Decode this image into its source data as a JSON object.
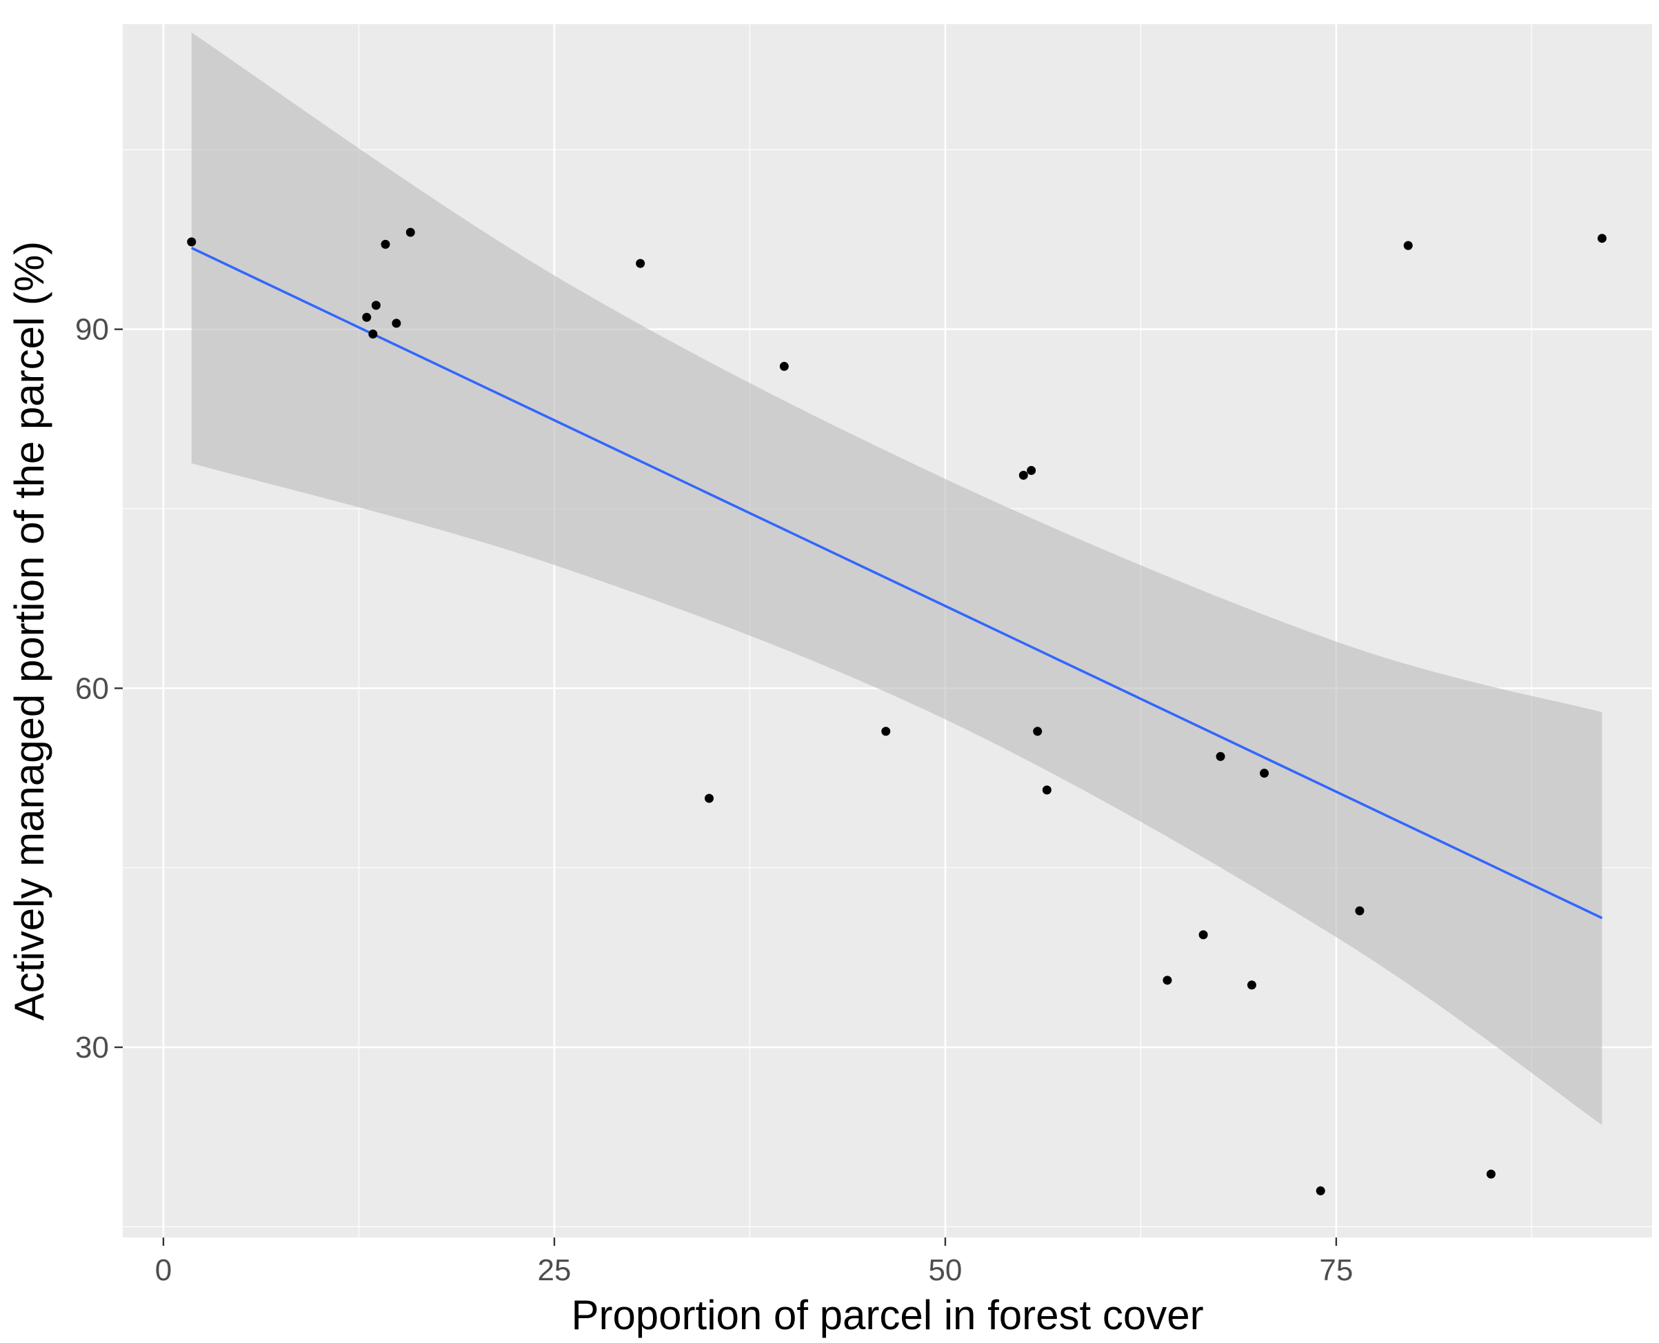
{
  "chart_data": {
    "type": "scatter",
    "title": "",
    "xlabel": "Proportion of parcel in forest cover",
    "ylabel": "Actively managed portion of the parcel (%)",
    "xlim": [
      -2.6,
      95.2
    ],
    "ylim": [
      14.1,
      115.5
    ],
    "xticks": [
      0,
      25,
      50,
      75
    ],
    "xtick_labels": [
      "0",
      "25",
      "50",
      "75"
    ],
    "yticks": [
      30,
      60,
      90
    ],
    "ytick_labels": [
      "30",
      "60",
      "90"
    ],
    "y_minor_gridlines": [
      15,
      45,
      75,
      105
    ],
    "x_minor_gridlines": [
      12.5,
      37.5,
      62.5,
      87.5
    ],
    "grid": true,
    "legend": "none",
    "colors": {
      "panel": "#ebebeb",
      "grid": "#ffffff",
      "points": "#000000",
      "fit_line": "#3366ff",
      "confidence_band": "#bdbdbd"
    },
    "points": [
      {
        "x": 1.8,
        "y": 97.3
      },
      {
        "x": 13.0,
        "y": 91.0
      },
      {
        "x": 13.4,
        "y": 89.6
      },
      {
        "x": 13.6,
        "y": 92.0
      },
      {
        "x": 14.2,
        "y": 97.1
      },
      {
        "x": 14.9,
        "y": 90.5
      },
      {
        "x": 15.8,
        "y": 98.1
      },
      {
        "x": 30.5,
        "y": 95.5
      },
      {
        "x": 34.9,
        "y": 50.8
      },
      {
        "x": 39.7,
        "y": 86.9
      },
      {
        "x": 46.2,
        "y": 56.4
      },
      {
        "x": 55.0,
        "y": 77.8
      },
      {
        "x": 55.5,
        "y": 78.2
      },
      {
        "x": 55.9,
        "y": 56.4
      },
      {
        "x": 56.5,
        "y": 51.5
      },
      {
        "x": 64.2,
        "y": 35.6
      },
      {
        "x": 66.5,
        "y": 39.4
      },
      {
        "x": 67.6,
        "y": 54.3
      },
      {
        "x": 69.6,
        "y": 35.2
      },
      {
        "x": 70.4,
        "y": 52.9
      },
      {
        "x": 74.0,
        "y": 18.0
      },
      {
        "x": 76.5,
        "y": 41.4
      },
      {
        "x": 79.6,
        "y": 97.0
      },
      {
        "x": 84.9,
        "y": 19.4
      },
      {
        "x": 92.0,
        "y": 97.6
      }
    ],
    "fit_line": {
      "x": [
        1.8,
        92.0
      ],
      "y": [
        96.8,
        40.8
      ]
    },
    "confidence_band": {
      "x": [
        1.8,
        25,
        50,
        75,
        92.0
      ],
      "upper": [
        114.8,
        94.5,
        77.5,
        63.9,
        58.0
      ],
      "lower": [
        78.8,
        70.3,
        57.4,
        39.2,
        23.5
      ]
    }
  }
}
